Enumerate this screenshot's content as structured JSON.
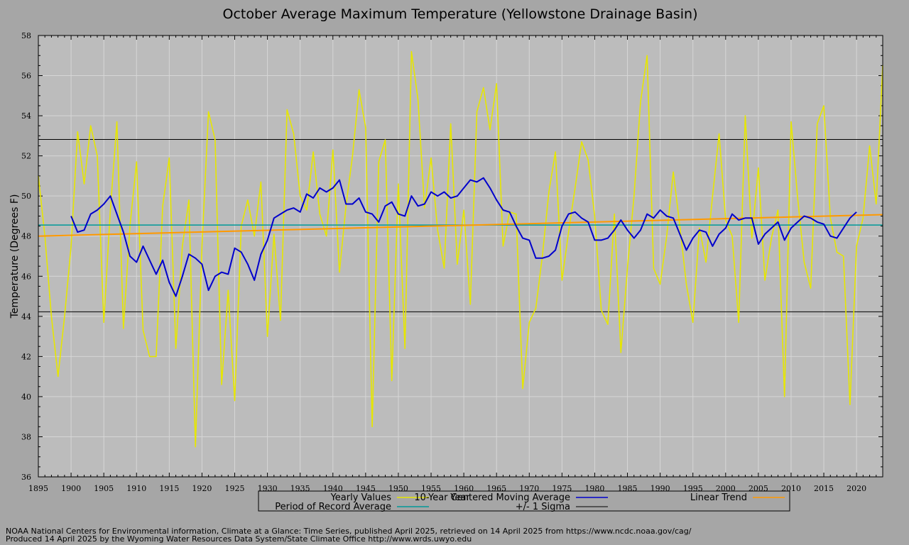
{
  "chart_data": {
    "type": "line",
    "title": "October Average Maximum Temperature (Yellowstone Drainage Basin)",
    "xlabel": "Year",
    "ylabel": "Temperature (Degrees F)",
    "xlim": [
      1895,
      2024
    ],
    "ylim": [
      36,
      58
    ],
    "x_ticks": [
      1895,
      1900,
      1905,
      1910,
      1915,
      1920,
      1925,
      1930,
      1935,
      1940,
      1945,
      1950,
      1955,
      1960,
      1965,
      1970,
      1975,
      1980,
      1985,
      1990,
      1995,
      2000,
      2005,
      2010,
      2015,
      2020
    ],
    "y_ticks": [
      36,
      38,
      40,
      42,
      44,
      46,
      48,
      50,
      52,
      54,
      56,
      58
    ],
    "grid": true,
    "legend": [
      {
        "label": "Yearly Values",
        "color": "#e6e600"
      },
      {
        "label": "10-Year Centered Moving Average",
        "color": "#0000cc"
      },
      {
        "label": "Linear Trend",
        "color": "#ff9900"
      },
      {
        "label": "Period of Record Average",
        "color": "#009999"
      },
      {
        "label": "+/- 1 Sigma",
        "color": "#000000"
      }
    ],
    "series": [
      {
        "name": "Yearly Values",
        "color": "#e6e600",
        "x_start": 1895,
        "values": [
          51.0,
          48.0,
          44.0,
          41.0,
          44.0,
          47.5,
          53.2,
          50.6,
          53.5,
          52.0,
          43.7,
          49.3,
          53.7,
          43.4,
          48.5,
          51.7,
          43.3,
          42.0,
          42.0,
          49.5,
          51.9,
          42.4,
          47.5,
          49.8,
          37.5,
          47.5,
          54.2,
          52.8,
          40.6,
          45.3,
          39.8,
          48.5,
          49.8,
          48.0,
          50.7,
          43.0,
          48.1,
          43.8,
          54.3,
          53.1,
          50.0,
          49.3,
          52.2,
          49.1,
          48.0,
          52.3,
          46.2,
          49.5,
          52.0,
          55.3,
          53.4,
          38.5,
          51.7,
          52.8,
          40.8,
          50.6,
          42.4,
          57.2,
          54.8,
          49.4,
          51.9,
          48.3,
          46.4,
          53.6,
          46.6,
          49.3,
          44.6,
          54.2,
          55.4,
          53.3,
          55.6,
          47.5,
          49.2,
          49.1,
          40.4,
          43.7,
          44.4,
          47.0,
          50.2,
          52.2,
          45.8,
          48.2,
          50.4,
          52.7,
          51.8,
          49.0,
          44.3,
          43.6,
          49.1,
          42.2,
          46.4,
          50.0,
          54.7,
          57.0,
          46.4,
          45.6,
          48.0,
          51.2,
          48.5,
          45.6,
          43.7,
          48.4,
          46.7,
          50.0,
          53.1,
          48.8,
          48.0,
          43.7,
          54.0,
          47.9,
          51.4,
          45.8,
          47.9,
          49.3,
          40.0,
          53.7,
          49.9,
          46.7,
          45.4,
          53.6,
          54.5,
          48.9,
          47.2,
          47.0,
          39.6,
          47.5,
          48.9,
          52.5,
          49.6,
          56.5
        ]
      },
      {
        "name": "10-Year Centered Moving Average",
        "color": "#0000cc",
        "x_start": 1900,
        "values": [
          49.0,
          48.2,
          48.3,
          49.1,
          49.3,
          49.6,
          50.0,
          49.1,
          48.2,
          47.0,
          46.7,
          47.5,
          46.8,
          46.1,
          46.8,
          45.7,
          45.0,
          46.0,
          47.1,
          46.9,
          46.6,
          45.3,
          46.0,
          46.2,
          46.1,
          47.4,
          47.2,
          46.6,
          45.8,
          47.1,
          47.8,
          48.9,
          49.1,
          49.3,
          49.4,
          49.2,
          50.1,
          49.9,
          50.4,
          50.2,
          50.4,
          50.8,
          49.6,
          49.6,
          49.9,
          49.2,
          49.1,
          48.7,
          49.5,
          49.7,
          49.1,
          49.0,
          50.0,
          49.5,
          49.6,
          50.2,
          50.0,
          50.2,
          49.9,
          50.0,
          50.4,
          50.8,
          50.7,
          50.9,
          50.4,
          49.8,
          49.3,
          49.2,
          48.5,
          47.9,
          47.8,
          46.9,
          46.9,
          47.0,
          47.3,
          48.5,
          49.1,
          49.2,
          48.9,
          48.7,
          47.8,
          47.8,
          47.9,
          48.3,
          48.8,
          48.3,
          47.9,
          48.3,
          49.1,
          48.9,
          49.3,
          49.0,
          48.9,
          48.1,
          47.3,
          47.9,
          48.3,
          48.2,
          47.5,
          48.1,
          48.4,
          49.1,
          48.8,
          48.9,
          48.9,
          47.6,
          48.1,
          48.4,
          48.7,
          47.8,
          48.4,
          48.7,
          49.0,
          48.9,
          48.7,
          48.6,
          48.0,
          47.9,
          48.4,
          48.9,
          49.2
        ]
      },
      {
        "name": "Linear Trend",
        "color": "#ff9900",
        "x": [
          1895,
          2024
        ],
        "values": [
          48.0,
          49.07
        ]
      },
      {
        "name": "Period of Record Average",
        "color": "#009999",
        "value": 48.55
      },
      {
        "name": "+/- 1 Sigma",
        "color": "#000000",
        "values": [
          52.82,
          44.23
        ]
      }
    ]
  },
  "footer": {
    "line1": "NOAA National Centers for Environmental information, Climate at a Glance: Time Series, published April 2025, retrieved on 14 April 2025 from https://www.ncdc.noaa.gov/cag/",
    "line2": "Produced 14 April 2025 by the Wyoming Water Resources Data System/State Climate Office http://www.wrds.uwyo.edu"
  },
  "colors": {
    "background": "#a6a6a6",
    "plot_background": "#bcbcbc",
    "grid": "#d6d6d6"
  }
}
